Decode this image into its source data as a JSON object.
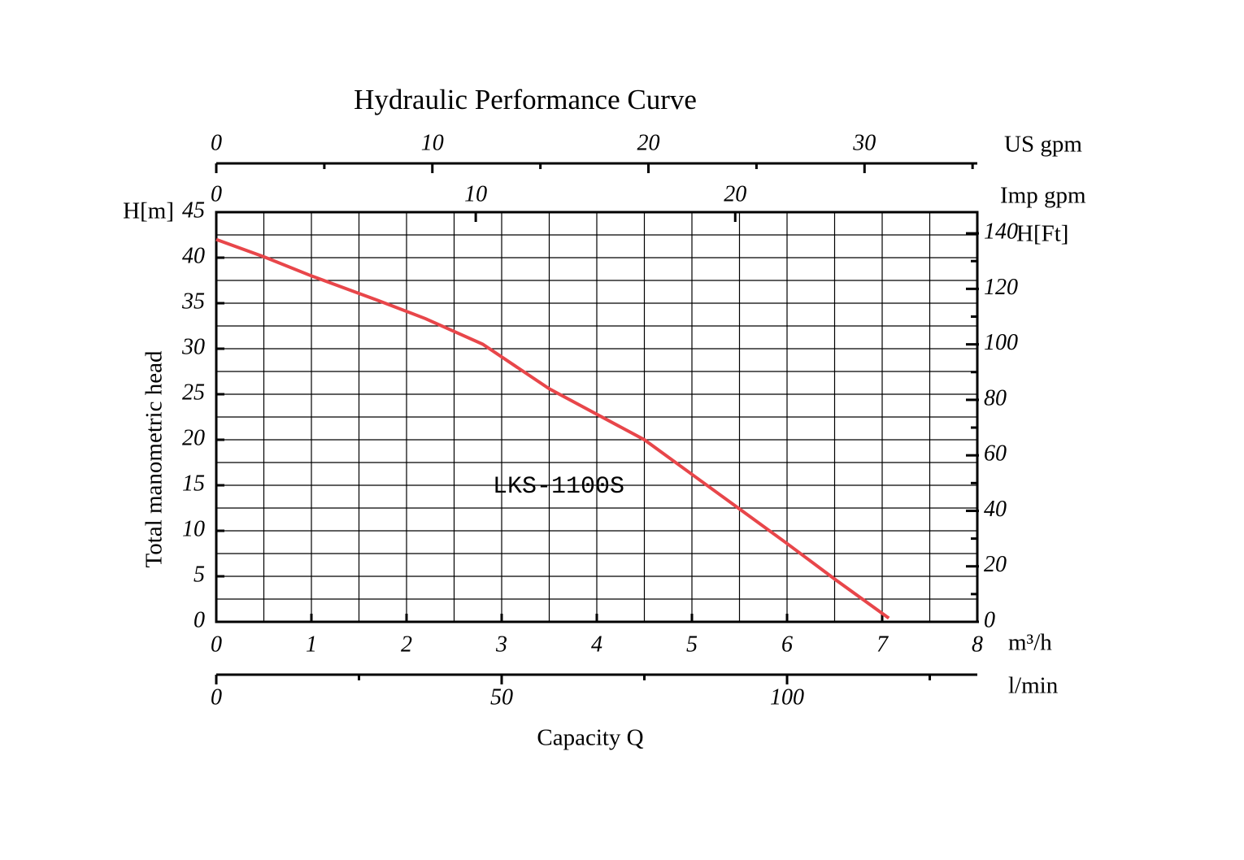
{
  "chart_data": {
    "type": "line",
    "title": "Hydraulic Performance Curve",
    "annotation": "LKS-1100S",
    "xlabel": "Capacity Q",
    "ylabel": "Total manometric head",
    "xunit": "m³/h",
    "yunit": "H[m]",
    "x": [
      0,
      0.5,
      1,
      1.7,
      2.2,
      2.8,
      3.5,
      4.5,
      5,
      5.5,
      6,
      6.5,
      7.07
    ],
    "values": [
      42,
      40.1,
      38,
      35.3,
      33.3,
      30.5,
      25.6,
      20,
      16.2,
      12.4,
      8.6,
      4.7,
      0.4
    ],
    "color": "#e8464a",
    "xlim": [
      0,
      8
    ],
    "xticks": [
      0,
      1,
      2,
      3,
      4,
      5,
      6,
      7,
      8
    ],
    "xminor": [
      0.5,
      1.5,
      2.5,
      3.5,
      4.5,
      5.5,
      6.5,
      7.5
    ],
    "ylim": [
      0,
      45
    ],
    "yticks": [
      0,
      5,
      10,
      15,
      20,
      25,
      30,
      35,
      40,
      45
    ],
    "yminor": [
      2.5,
      7.5,
      12.5,
      17.5,
      22.5,
      27.5,
      32.5,
      37.5,
      42.5
    ],
    "grid": true,
    "secondary_axes": [
      {
        "position": "bottom",
        "label": "l/min",
        "lim": [
          0,
          133.33
        ],
        "ticks": [
          0,
          50,
          100
        ],
        "minor": [
          25,
          75,
          125
        ]
      },
      {
        "position": "top",
        "label": "US gpm",
        "lim": [
          0,
          35.22
        ],
        "ticks": [
          0,
          10,
          20,
          30
        ],
        "minor": [
          5,
          15,
          25,
          35
        ]
      },
      {
        "position": "top-inner",
        "label": "Imp gpm",
        "lim": [
          0,
          29.33
        ],
        "ticks": [
          0,
          10,
          20
        ],
        "minor": []
      },
      {
        "position": "right",
        "label": "H[Ft]",
        "lim": [
          0,
          147.64
        ],
        "ticks": [
          0,
          20,
          40,
          60,
          80,
          100,
          120,
          140
        ],
        "minor": [
          10,
          30,
          50,
          70,
          90,
          110,
          130
        ]
      }
    ]
  }
}
